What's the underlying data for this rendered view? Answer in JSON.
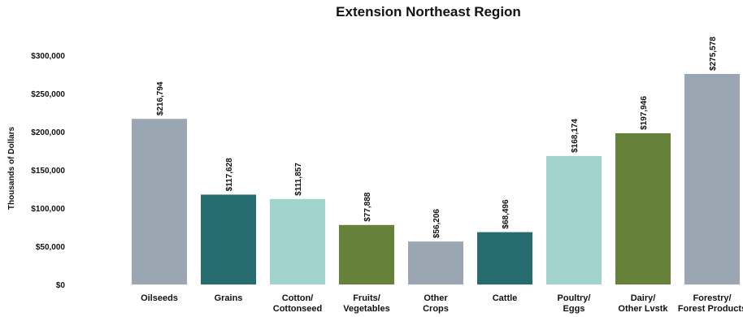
{
  "chart_data": {
    "type": "bar",
    "title": "Extension Northeast Region",
    "xlabel": "",
    "ylabel": "Thousands of Dollars",
    "ylim": [
      0,
      300000
    ],
    "yticks": [
      0,
      50000,
      100000,
      150000,
      200000,
      250000,
      300000
    ],
    "ytick_labels": [
      "$0",
      "$50,000",
      "$100,000",
      "$150,000",
      "$200,000",
      "$250,000",
      "$300,000"
    ],
    "grid": false,
    "legend": "none",
    "categories": [
      [
        "Oilseeds"
      ],
      [
        "Grains"
      ],
      [
        "Cotton/",
        "Cottonseed"
      ],
      [
        "Fruits/",
        "Vegetables"
      ],
      [
        "Other",
        "Crops"
      ],
      [
        "Cattle"
      ],
      [
        "Poultry/",
        "Eggs"
      ],
      [
        "Dairy/",
        "Other Lvstk"
      ],
      [
        "Forestry/",
        "Forest Products"
      ]
    ],
    "values": [
      216794,
      117628,
      111857,
      77888,
      56206,
      68496,
      168174,
      197946,
      275578
    ],
    "data_labels": [
      "$216,794",
      "$117,628",
      "$111,857",
      "$77,888",
      "$56,206",
      "$68,496",
      "$168,174",
      "$197,946",
      "$275,578"
    ],
    "colors": [
      "#9aa6b2",
      "#266b6e",
      "#9fd3cc",
      "#66823a",
      "#9aa6b2",
      "#266b6e",
      "#9fd3cc",
      "#66823a",
      "#9aa6b2"
    ]
  }
}
